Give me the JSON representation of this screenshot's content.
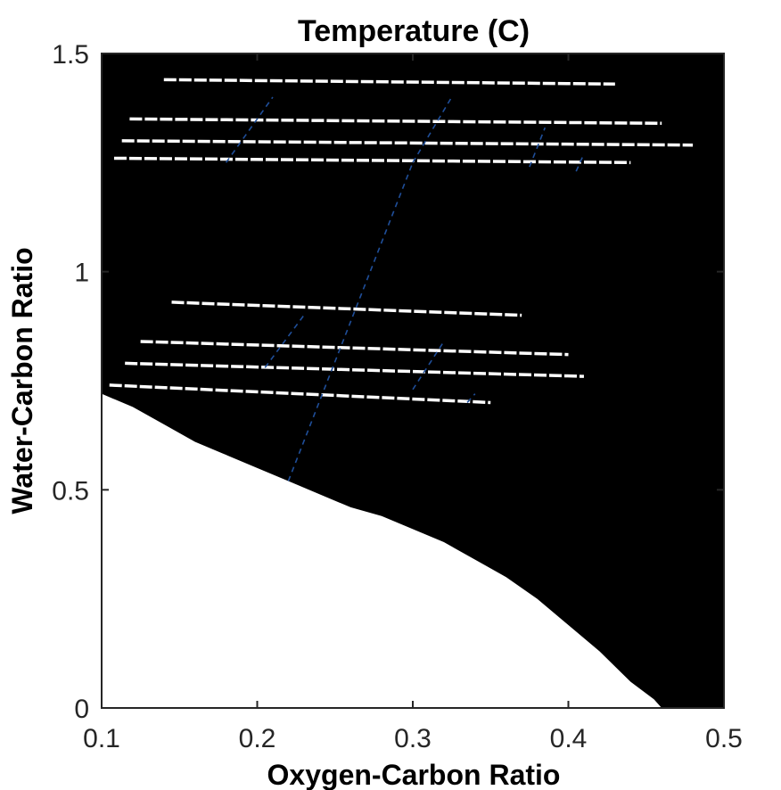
{
  "chart_data": {
    "type": "area",
    "title": "Temperature (C)",
    "xlabel": "Oxygen-Carbon Ratio",
    "ylabel": "Water-Carbon Ratio",
    "xlim": [
      0.1,
      0.5
    ],
    "ylim": [
      0,
      1.5
    ],
    "xticks": [
      0.1,
      0.2,
      0.3,
      0.4,
      0.5
    ],
    "yticks": [
      0,
      0.5,
      1,
      1.5
    ],
    "xtick_labels": [
      "0.1",
      "0.2",
      "0.3",
      "0.4",
      "0.5"
    ],
    "ytick_labels": [
      "0",
      "0.5",
      "1",
      "1.5"
    ],
    "grid": false,
    "fill_color": "#000000",
    "contour_line_color": "#1f4e99",
    "lower_boundary": {
      "x": [
        0.1,
        0.12,
        0.14,
        0.16,
        0.18,
        0.2,
        0.22,
        0.24,
        0.26,
        0.28,
        0.3,
        0.32,
        0.34,
        0.36,
        0.38,
        0.4,
        0.42,
        0.44,
        0.455,
        0.46
      ],
      "y": [
        0.72,
        0.69,
        0.65,
        0.61,
        0.58,
        0.55,
        0.52,
        0.49,
        0.46,
        0.44,
        0.41,
        0.38,
        0.34,
        0.3,
        0.25,
        0.19,
        0.13,
        0.06,
        0.02,
        0.0
      ]
    },
    "white_bands": [
      {
        "x": [
          0.14,
          0.43
        ],
        "y": [
          1.44,
          1.43
        ]
      },
      {
        "x": [
          0.118,
          0.46
        ],
        "y": [
          1.35,
          1.34
        ]
      },
      {
        "x": [
          0.113,
          0.48
        ],
        "y": [
          1.3,
          1.29
        ]
      },
      {
        "x": [
          0.108,
          0.44
        ],
        "y": [
          1.26,
          1.25
        ]
      },
      {
        "x": [
          0.145,
          0.37
        ],
        "y": [
          0.93,
          0.9
        ]
      },
      {
        "x": [
          0.125,
          0.4
        ],
        "y": [
          0.84,
          0.81
        ]
      },
      {
        "x": [
          0.115,
          0.41
        ],
        "y": [
          0.79,
          0.76
        ]
      },
      {
        "x": [
          0.105,
          0.35
        ],
        "y": [
          0.74,
          0.7
        ]
      }
    ],
    "contour_lines": [
      {
        "x": [
          0.18,
          0.21
        ],
        "y": [
          1.25,
          1.4
        ]
      },
      {
        "x": [
          0.3,
          0.325
        ],
        "y": [
          1.25,
          1.4
        ]
      },
      {
        "x": [
          0.375,
          0.385
        ],
        "y": [
          1.24,
          1.33
        ]
      },
      {
        "x": [
          0.405,
          0.41
        ],
        "y": [
          1.23,
          1.27
        ]
      },
      {
        "x": [
          0.205,
          0.23
        ],
        "y": [
          0.78,
          0.9
        ]
      },
      {
        "x": [
          0.3,
          0.32
        ],
        "y": [
          0.73,
          0.84
        ]
      },
      {
        "x": [
          0.335,
          0.34
        ],
        "y": [
          0.7,
          0.72
        ]
      },
      {
        "x": [
          0.22,
          0.3
        ],
        "y": [
          0.52,
          1.25
        ]
      }
    ]
  }
}
